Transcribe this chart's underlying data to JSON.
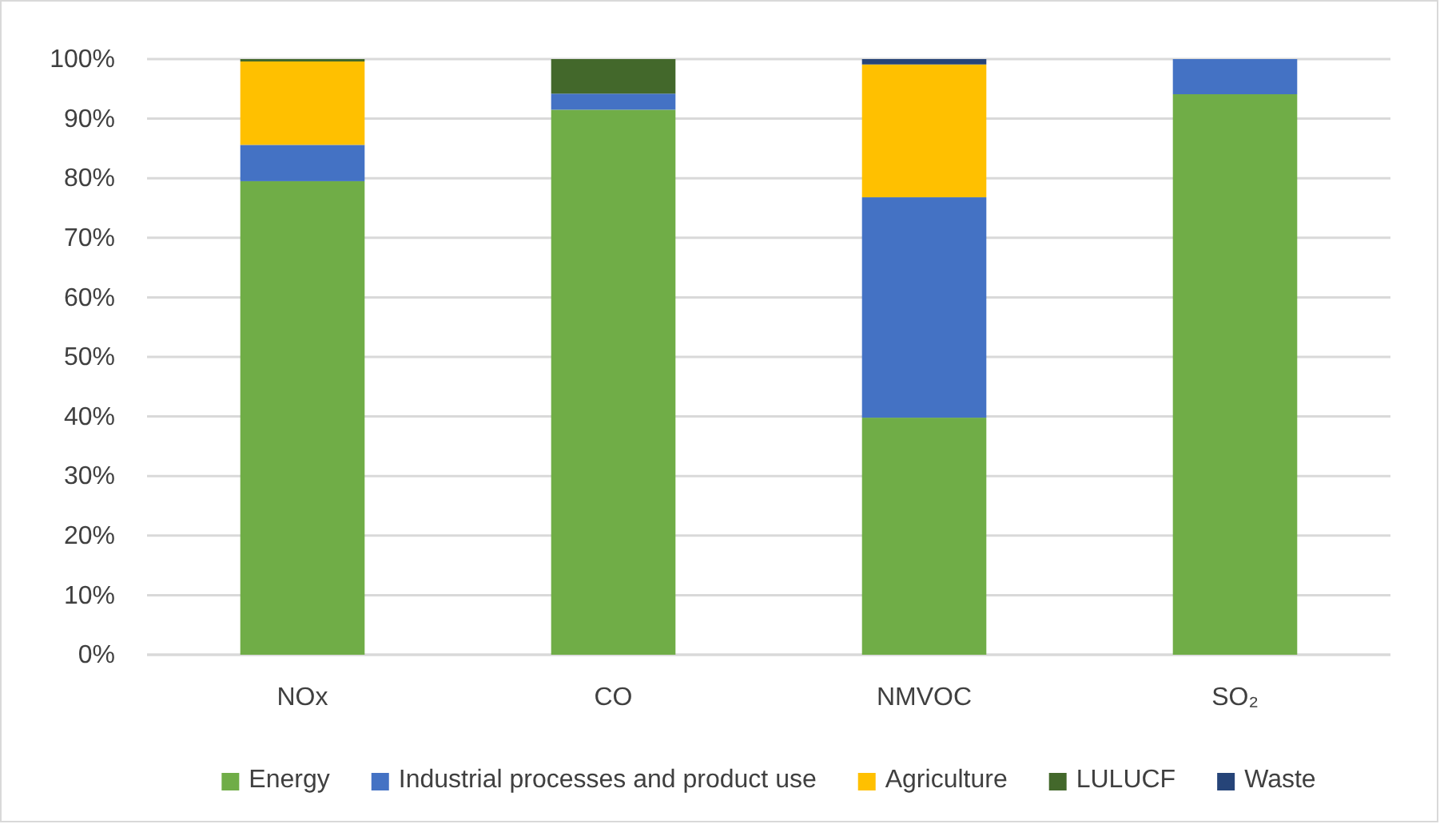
{
  "chart_data": {
    "type": "bar",
    "stacked": true,
    "categories": [
      "NOx",
      "CO",
      "NMVOC",
      "SO₂"
    ],
    "series": [
      {
        "name": "Energy",
        "color": "#70ad47",
        "values": [
          79.5,
          91.5,
          39.8,
          94.1
        ]
      },
      {
        "name": "Industrial processes and product use",
        "color": "#4472c4",
        "values": [
          6.1,
          2.7,
          37.0,
          5.9
        ]
      },
      {
        "name": "Agriculture",
        "color": "#ffc000",
        "values": [
          14.0,
          0,
          22.3,
          0
        ]
      },
      {
        "name": "LULUCF",
        "color": "#43682b",
        "values": [
          0.4,
          5.8,
          0,
          0
        ]
      },
      {
        "name": "Waste",
        "color": "#264478",
        "values": [
          0,
          0,
          0.9,
          0
        ]
      }
    ],
    "ylim": [
      0,
      100
    ],
    "yticks": [
      {
        "value": 0,
        "label": "0%"
      },
      {
        "value": 10,
        "label": "10%"
      },
      {
        "value": 20,
        "label": "20%"
      },
      {
        "value": 30,
        "label": "30%"
      },
      {
        "value": 40,
        "label": "40%"
      },
      {
        "value": 50,
        "label": "50%"
      },
      {
        "value": 60,
        "label": "60%"
      },
      {
        "value": 70,
        "label": "70%"
      },
      {
        "value": 80,
        "label": "80%"
      },
      {
        "value": 90,
        "label": "90%"
      },
      {
        "value": 100,
        "label": "100%"
      }
    ],
    "grid": "y",
    "legend": "bottom"
  }
}
